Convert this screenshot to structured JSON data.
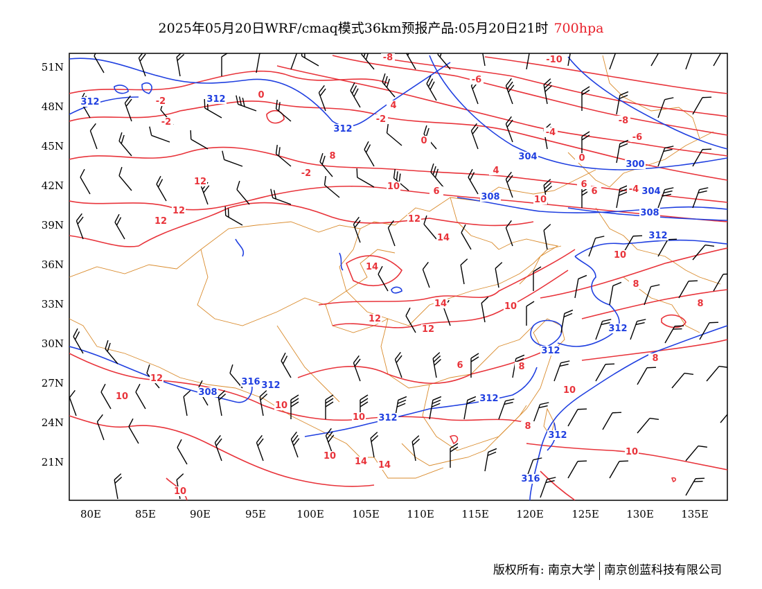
{
  "title": {
    "text": "2025年05月20日WRF/cmaq模式36km预报产品:05月20日21时",
    "level": "700hpa"
  },
  "map": {
    "lat_labels": [
      "51N",
      "48N",
      "45N",
      "42N",
      "39N",
      "36N",
      "33N",
      "30N",
      "27N",
      "24N",
      "21N"
    ],
    "lon_labels": [
      "80E",
      "85E",
      "90E",
      "95E",
      "100E",
      "105E",
      "110E",
      "115E",
      "120E",
      "125E",
      "130E",
      "135E"
    ],
    "colors": {
      "temperature": "#e8333a",
      "height": "#1f3fe0",
      "boundary": "#d98a2b",
      "wind": "#000000"
    },
    "temperature_labels": [
      "-8",
      "-10",
      "-6",
      "0",
      "-2",
      "4",
      "-2",
      "0",
      "-2",
      "-6",
      "-8",
      "-4",
      "4",
      "6",
      "0",
      "6",
      "8",
      "-2",
      "6",
      "10",
      "8",
      "8",
      "10",
      "12",
      "-4",
      "14",
      "14",
      "10",
      "14",
      "12",
      "12",
      "10",
      "8",
      "6",
      "8",
      "10",
      "12",
      "10",
      "10",
      "8",
      "10",
      "10",
      "14",
      "14",
      "10",
      "10",
      "12",
      "12",
      "12"
    ],
    "height_labels": [
      "312",
      "312",
      "312",
      "304",
      "300",
      "304",
      "308",
      "308",
      "312",
      "312",
      "312",
      "312",
      "312",
      "312",
      "308",
      "312",
      "316",
      "316"
    ]
  },
  "footer": {
    "left": "版权所有: 南京大学",
    "right": "南京创蓝科技有限公司"
  }
}
